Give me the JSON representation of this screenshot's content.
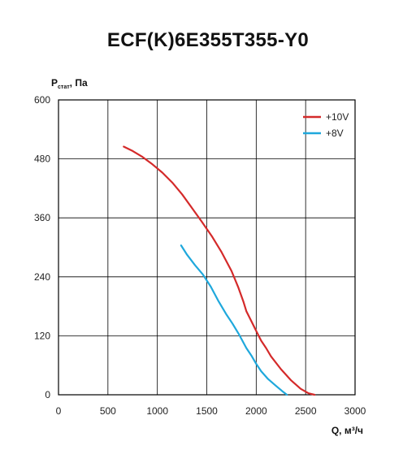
{
  "chart_data": {
    "type": "line",
    "title": "ECF(K)6E355T355-Y0",
    "ylabel_main": "P",
    "ylabel_sub": "стат",
    "ylabel_unit": ", Па",
    "xlabel": "Q, м³/ч",
    "xlim": [
      0,
      3000
    ],
    "ylim": [
      0,
      600
    ],
    "xticks": [
      0,
      500,
      1000,
      1500,
      2000,
      2500,
      3000
    ],
    "yticks": [
      0,
      120,
      240,
      360,
      480,
      600
    ],
    "grid": true,
    "legend_position": "top-right",
    "series": [
      {
        "name": "+10V",
        "color": "#d42a2a",
        "x": [
          660,
          750,
          850,
          950,
          1050,
          1150,
          1250,
          1350,
          1450,
          1550,
          1650,
          1750,
          1820,
          1870,
          1900,
          1950,
          2000,
          2050,
          2100,
          2150,
          2250,
          2350,
          2450,
          2530,
          2590
        ],
        "y": [
          505,
          496,
          484,
          469,
          452,
          432,
          408,
          380,
          352,
          323,
          290,
          252,
          218,
          190,
          170,
          150,
          130,
          110,
          95,
          78,
          52,
          30,
          12,
          3,
          0
        ]
      },
      {
        "name": "+8V",
        "color": "#1fa8dc",
        "x": [
          1240,
          1300,
          1380,
          1460,
          1540,
          1620,
          1700,
          1760,
          1820,
          1860,
          1900,
          1950,
          2000,
          2050,
          2120,
          2200,
          2260,
          2310
        ],
        "y": [
          304,
          285,
          264,
          245,
          220,
          190,
          163,
          145,
          125,
          110,
          95,
          80,
          63,
          48,
          32,
          18,
          8,
          0
        ]
      }
    ]
  }
}
